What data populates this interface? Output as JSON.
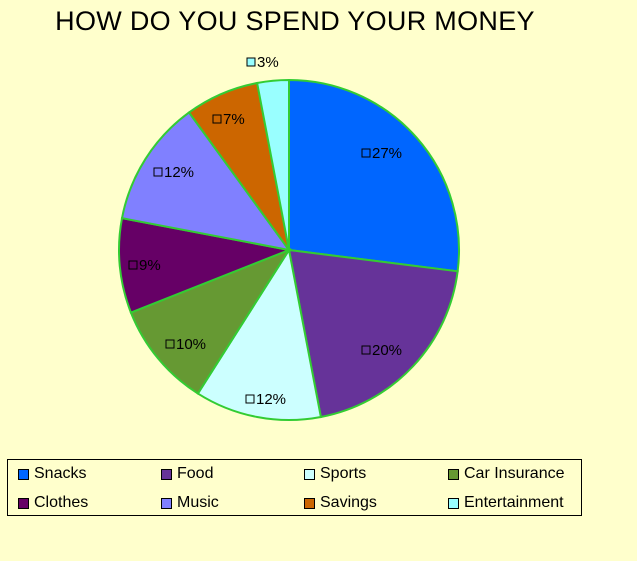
{
  "chart_data": {
    "type": "pie",
    "title": "HOW DO YOU SPEND YOUR MONEY",
    "legend_position": "bottom",
    "slices": [
      {
        "name": "Snacks",
        "value": 27,
        "label": "27%",
        "color": "#0066ff"
      },
      {
        "name": "Food",
        "value": 20,
        "label": "20%",
        "color": "#663399"
      },
      {
        "name": "Sports",
        "value": 12,
        "label": "12%",
        "color": "#ccffff"
      },
      {
        "name": "Car Insurance",
        "value": 10,
        "label": "10%",
        "color": "#669933"
      },
      {
        "name": "Clothes",
        "value": 9,
        "label": "9%",
        "color": "#660066"
      },
      {
        "name": "Music",
        "value": 12,
        "label": "12%",
        "color": "#8080ff"
      },
      {
        "name": "Savings",
        "value": 7,
        "label": "7%",
        "color": "#cc6600"
      },
      {
        "name": "Entertainment",
        "value": 3,
        "label": "3%",
        "color": "#99ffff"
      }
    ]
  },
  "colors": {
    "background": "#ffffcc",
    "slice_border": "#33cc33"
  }
}
